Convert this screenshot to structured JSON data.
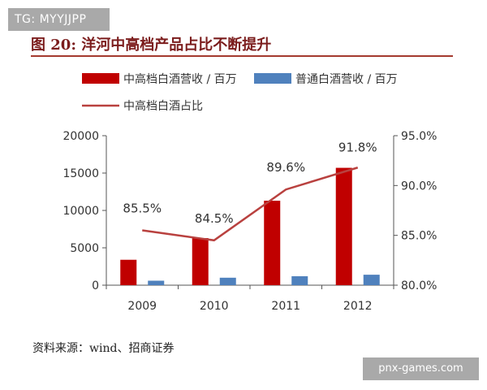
{
  "watermark_top": "TG: MYYJJPP",
  "watermark_bottom": "pnx-games.com",
  "figure_title": "图 20:  洋河中高档产品占比不断提升",
  "source_note": "资料来源：wind、招商证券",
  "colors": {
    "high_end_bar": "#c00000",
    "normal_bar": "#4f81bd",
    "share_line": "#b9413f",
    "axis": "#555555",
    "title": "#7b1c1c"
  },
  "chart_data": {
    "type": "bar",
    "categories": [
      "2009",
      "2010",
      "2011",
      "2012"
    ],
    "series": [
      {
        "name": "中高档白酒营收 / 百万",
        "type": "bar",
        "axis": "left",
        "values": [
          3400,
          6300,
          11300,
          15700
        ]
      },
      {
        "name": "普通白酒营收 / 百万",
        "type": "bar",
        "axis": "left",
        "values": [
          600,
          1000,
          1200,
          1400
        ]
      },
      {
        "name": "中高档白酒占比",
        "type": "line",
        "axis": "right",
        "values": [
          85.5,
          84.5,
          89.6,
          91.8
        ],
        "labels": [
          "85.5%",
          "84.5%",
          "89.6%",
          "91.8%"
        ]
      }
    ],
    "y_left": {
      "range": [
        0,
        20000
      ],
      "ticks": [
        "0",
        "5000",
        "10000",
        "15000",
        "20000"
      ],
      "tick_values": [
        0,
        5000,
        10000,
        15000,
        20000
      ]
    },
    "y_right": {
      "range": [
        80,
        95
      ],
      "ticks": [
        "80.0%",
        "85.0%",
        "90.0%",
        "95.0%"
      ],
      "tick_values": [
        80,
        85,
        90,
        95
      ]
    },
    "legend_position": "top",
    "grid": false
  }
}
